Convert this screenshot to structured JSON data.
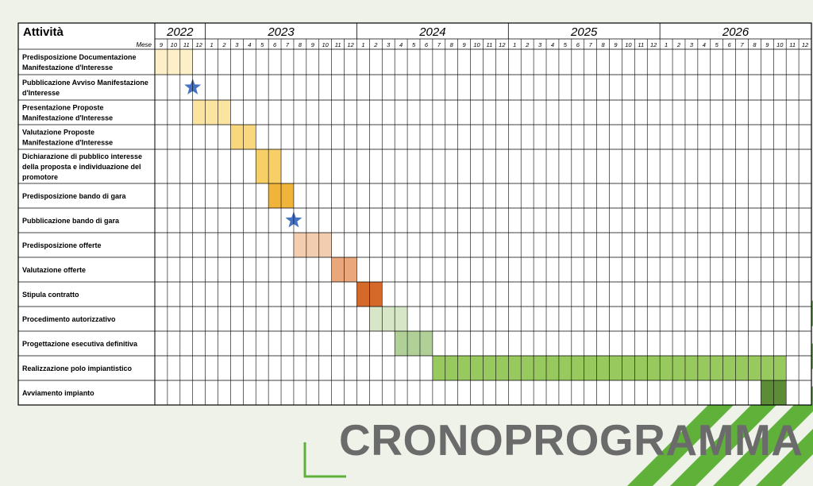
{
  "chart_data": {
    "type": "gantt",
    "header_label": "Attività",
    "months_label": "Mese",
    "years": [
      {
        "year": "2022",
        "months": [
          "9",
          "10",
          "11",
          "12"
        ]
      },
      {
        "year": "2023",
        "months": [
          "1",
          "2",
          "3",
          "4",
          "5",
          "6",
          "7",
          "8",
          "9",
          "10",
          "11",
          "12"
        ]
      },
      {
        "year": "2024",
        "months": [
          "1",
          "2",
          "3",
          "4",
          "5",
          "6",
          "7",
          "8",
          "9",
          "10",
          "11",
          "12"
        ]
      },
      {
        "year": "2025",
        "months": [
          "1",
          "2",
          "3",
          "4",
          "5",
          "6",
          "7",
          "8",
          "9",
          "10",
          "11",
          "12"
        ]
      },
      {
        "year": "2026",
        "months": [
          "1",
          "2",
          "3",
          "4",
          "5",
          "6",
          "7",
          "8",
          "9",
          "10",
          "11",
          "12"
        ]
      }
    ],
    "tasks": [
      {
        "name": "Predisposizione Documentazione Manifestazione d'Interesse",
        "lines": [
          "Predisposizione Documentazione",
          "Manifestazione d'Interesse"
        ],
        "type": "bar",
        "start": "2022-09",
        "end": "2022-11",
        "color": "#fdf0c8"
      },
      {
        "name": "Pubblicazione Avviso Manifestazione d'Interesse",
        "lines": [
          "Pubblicazione Avviso Manifestazione",
          "d'Interesse"
        ],
        "type": "milestone",
        "date": "2022-11",
        "color": "#4472c4"
      },
      {
        "name": "Presentazione Proposte Manifestazione d'Interesse",
        "lines": [
          "Presentazione Proposte",
          "Manifestazione d'Interesse"
        ],
        "type": "bar",
        "start": "2022-12",
        "end": "2023-02",
        "color": "#fbe3a0"
      },
      {
        "name": "Valutazione Proposte Manifestazione d'Interesse",
        "lines": [
          "Valutazione Proposte",
          "Manifestazione d'Interesse"
        ],
        "type": "bar",
        "start": "2023-03",
        "end": "2023-04",
        "color": "#f9d77c"
      },
      {
        "name": "Dichiarazione di pubblico interesse della proposta e individuazione del promotore",
        "lines": [
          "Dichiarazione di pubblico interesse",
          "della proposta e individuazione del",
          "promotore"
        ],
        "type": "bar",
        "start": "2023-05",
        "end": "2023-06",
        "color": "#f8cf66"
      },
      {
        "name": "Predisposizione bando di gara",
        "lines": [
          "Predisposizione bando di gara"
        ],
        "type": "bar",
        "start": "2023-06",
        "end": "2023-07",
        "color": "#f1b43a"
      },
      {
        "name": "Pubblicazione bando di gara",
        "lines": [
          "Pubblicazione bando di gara"
        ],
        "type": "milestone",
        "date": "2023-07",
        "color": "#4472c4"
      },
      {
        "name": "Predisposizione offerte",
        "lines": [
          "Predisposizione offerte"
        ],
        "type": "bar",
        "start": "2023-08",
        "end": "2023-10",
        "color": "#f3cdb0"
      },
      {
        "name": "Valutazione offerte",
        "lines": [
          "Valutazione offerte"
        ],
        "type": "bar",
        "start": "2023-11",
        "end": "2023-12",
        "color": "#e9a77b"
      },
      {
        "name": "Stipula contratto",
        "lines": [
          "Stipula contratto"
        ],
        "type": "bar",
        "start": "2024-01",
        "end": "2024-02",
        "color": "#d5692a"
      },
      {
        "name": "Procedimento autorizzativo",
        "lines": [
          "Procedimento autorizzativo"
        ],
        "type": "bar",
        "start": "2024-02",
        "end": "2024-04",
        "color": "#d6e6c6"
      },
      {
        "name": "Progettazione esecutiva definitiva",
        "lines": [
          "Progettazione esecutiva definitiva"
        ],
        "type": "bar",
        "start": "2024-04",
        "end": "2024-06",
        "color": "#b1d097"
      },
      {
        "name": "Realizzazione polo impiantistico",
        "lines": [
          "Realizzazione polo impiantistico"
        ],
        "type": "bar",
        "start": "2024-07",
        "end": "2026-10",
        "color": "#97c95f"
      },
      {
        "name": "Avviamento impianto",
        "lines": [
          "Avviamento impianto"
        ],
        "type": "bar",
        "start": "2026-09",
        "end": "2026-10",
        "color": "#5c8c35"
      }
    ],
    "grid": true,
    "legend": "none"
  },
  "banner": {
    "text": "CRONOPROGRAMMA",
    "text_color": "#6b6b6b",
    "accent_color": "#5fb13a"
  }
}
